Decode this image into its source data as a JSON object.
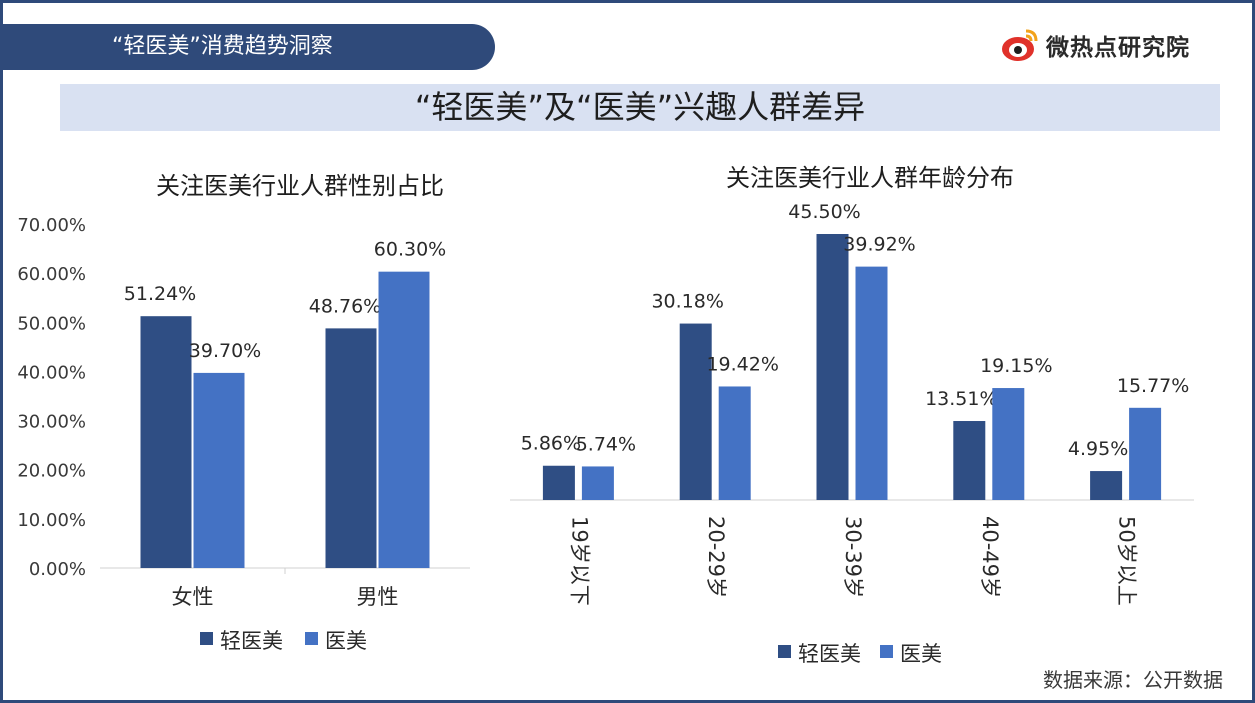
{
  "header": {
    "tab_label": "“轻医美”消费趋势洞察",
    "brand_name": "微热点研究院"
  },
  "page_title": "“轻医美”及“医美”兴趣人群差异",
  "source_note": "数据来源：公开数据",
  "colors": {
    "light_med": "#2f4e84",
    "med": "#4472c4",
    "accent": "#2f4a7a"
  },
  "chart_data": [
    {
      "type": "bar",
      "title": "关注医美行业人群性别占比",
      "categories": [
        "女性",
        "男性"
      ],
      "series": [
        {
          "name": "轻医美",
          "values": [
            51.24,
            48.76
          ],
          "labels": [
            "51.24%",
            "48.76%"
          ]
        },
        {
          "name": "医美",
          "values": [
            39.7,
            60.3
          ],
          "labels": [
            "39.70%",
            "60.30%"
          ]
        }
      ],
      "yticks": [
        "0.00%",
        "10.00%",
        "20.00%",
        "30.00%",
        "40.00%",
        "50.00%",
        "60.00%",
        "70.00%"
      ],
      "ylim": [
        0,
        70
      ],
      "legend": "bottom"
    },
    {
      "type": "bar",
      "title": "关注医美行业人群年龄分布",
      "categories": [
        "19岁以下",
        "20-29岁",
        "30-39岁",
        "40-49岁",
        "50岁以上"
      ],
      "series": [
        {
          "name": "轻医美",
          "values": [
            5.86,
            30.18,
            45.5,
            13.51,
            4.95
          ],
          "labels": [
            "5.86%",
            "30.18%",
            "45.50%",
            "13.51%",
            "4.95%"
          ]
        },
        {
          "name": "医美",
          "values": [
            5.74,
            19.42,
            39.92,
            19.15,
            15.77
          ],
          "labels": [
            "5.74%",
            "19.42%",
            "39.92%",
            "19.15%",
            "15.77%"
          ]
        }
      ],
      "legend": "bottom"
    }
  ]
}
